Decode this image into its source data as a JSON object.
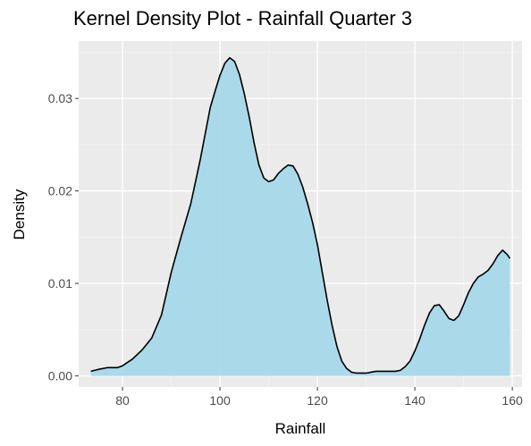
{
  "chart_data": {
    "type": "area",
    "title": "Kernel Density Plot - Rainfall Quarter 3",
    "xlabel": "Rainfall",
    "ylabel": "Density",
    "xlim": [
      71,
      162
    ],
    "ylim": [
      -0.0012,
      0.0362
    ],
    "x_ticks": [
      {
        "value": 80,
        "label": "80"
      },
      {
        "value": 100,
        "label": "100"
      },
      {
        "value": 120,
        "label": "120"
      },
      {
        "value": 140,
        "label": "140"
      },
      {
        "value": 160,
        "label": "160"
      }
    ],
    "y_ticks": [
      {
        "value": 0,
        "label": "0.00"
      },
      {
        "value": 0.01,
        "label": "0.01"
      },
      {
        "value": 0.02,
        "label": "0.02"
      },
      {
        "value": 0.03,
        "label": "0.03"
      }
    ],
    "grid": true,
    "fill_color": "#a6d8ea",
    "line_color": "#000000",
    "panel_color": "#ebebeb",
    "x": [
      73.5,
      75,
      77,
      79,
      80,
      82,
      84,
      86,
      88,
      90,
      92,
      94,
      96,
      98,
      99,
      100,
      101,
      102,
      103,
      104,
      105,
      106,
      107,
      108,
      109,
      110,
      111,
      112,
      113,
      114,
      115,
      116,
      117,
      118,
      119,
      120,
      121,
      122,
      123,
      124,
      125,
      126,
      127,
      128,
      129,
      130,
      131,
      132,
      133,
      134,
      135,
      136,
      137,
      138,
      139,
      140,
      141,
      142,
      143,
      144,
      145,
      146,
      147,
      148,
      149,
      150,
      151,
      152,
      153,
      154,
      155,
      156,
      157,
      158,
      159,
      159.5
    ],
    "y": [
      0.0005,
      0.0007,
      0.0009,
      0.0009,
      0.0011,
      0.0018,
      0.0028,
      0.0041,
      0.0066,
      0.0112,
      0.015,
      0.0186,
      0.0235,
      0.029,
      0.0308,
      0.0325,
      0.0338,
      0.0344,
      0.034,
      0.0326,
      0.0305,
      0.028,
      0.0252,
      0.0228,
      0.0214,
      0.021,
      0.0212,
      0.0219,
      0.0224,
      0.0228,
      0.0227,
      0.0218,
      0.0204,
      0.0186,
      0.0166,
      0.0142,
      0.0112,
      0.0082,
      0.0055,
      0.0032,
      0.0016,
      0.0008,
      0.0004,
      0.0003,
      0.0003,
      0.0003,
      0.0004,
      0.0005,
      0.0005,
      0.0005,
      0.0005,
      0.0005,
      0.0006,
      0.001,
      0.0016,
      0.0027,
      0.004,
      0.0055,
      0.0068,
      0.0076,
      0.0077,
      0.007,
      0.0062,
      0.006,
      0.0065,
      0.0077,
      0.009,
      0.01,
      0.0107,
      0.011,
      0.0114,
      0.0121,
      0.013,
      0.0136,
      0.0131,
      0.0127
    ]
  }
}
